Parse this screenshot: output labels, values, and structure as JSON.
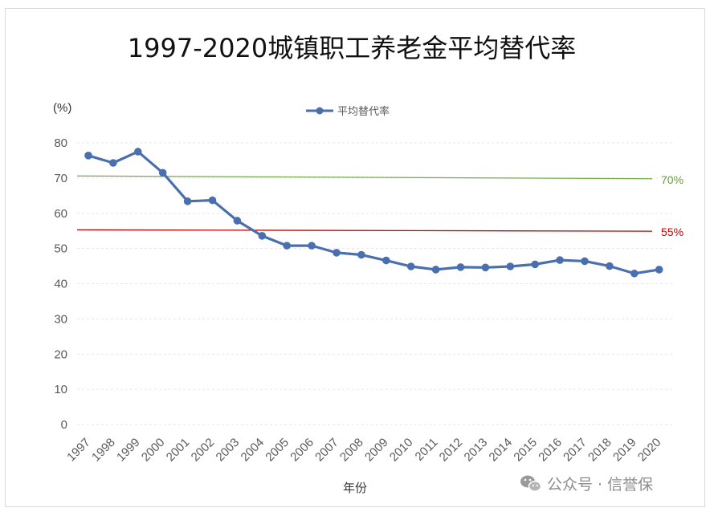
{
  "chart_data": {
    "type": "line",
    "title": "1997-2020城镇职工养老金平均替代率",
    "unit_label": "(%)",
    "xlabel": "年份",
    "ylabel": "",
    "ylim": [
      0,
      80
    ],
    "yticks": [
      0,
      10,
      20,
      30,
      40,
      50,
      60,
      70,
      80
    ],
    "grid": true,
    "legend_position": "top-center",
    "categories": [
      "1997",
      "1998",
      "1999",
      "2000",
      "2001",
      "2002",
      "2003",
      "2004",
      "2005",
      "2006",
      "2007",
      "2008",
      "2009",
      "2010",
      "2011",
      "2012",
      "2013",
      "2014",
      "2015",
      "2016",
      "2017",
      "2018",
      "2019",
      "2020"
    ],
    "series": [
      {
        "name": "平均替代率",
        "color": "#4a6fae",
        "values": [
          76.4,
          74.3,
          77.5,
          71.5,
          63.4,
          63.7,
          57.9,
          53.6,
          50.8,
          50.8,
          48.8,
          48.2,
          46.6,
          44.9,
          44.0,
          44.7,
          44.6,
          44.9,
          45.5,
          46.7,
          46.4,
          45.0,
          42.9,
          44.0
        ]
      }
    ],
    "reference_lines": [
      {
        "label": "70%",
        "start": 70.6,
        "end": 69.8,
        "color": "#70ad47",
        "label_color": "#6a9a3c"
      },
      {
        "label": "55%",
        "start": 55.3,
        "end": 54.9,
        "color": "#c00000",
        "label_color": "#c00000"
      }
    ]
  },
  "watermark": {
    "text": "公众号 · 信誉保",
    "icon": "wechat-icon"
  }
}
